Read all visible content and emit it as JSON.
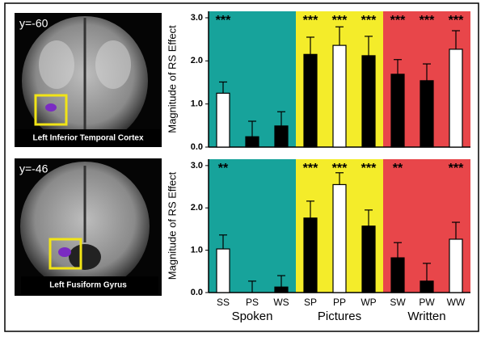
{
  "panels": [
    {
      "coordinate": "y=-60",
      "label": "Left Inferior Temporal Cortex"
    },
    {
      "coordinate": "y=-46",
      "label": "Left Fusiform Gyrus"
    }
  ],
  "chart_data": [
    {
      "type": "bar",
      "y_label": "Magnitude of RS Effect",
      "categories": [
        null,
        null,
        null,
        null,
        null,
        null,
        null,
        null,
        null
      ],
      "background_colors": [
        "#17a39b",
        "#f4ec2a",
        "#e8464a"
      ],
      "series": [
        {
          "values": [
            1.25,
            0.24,
            0.49,
            2.15,
            2.36,
            2.12,
            1.69,
            1.54,
            2.27
          ],
          "errors": [
            0.26,
            0.36,
            0.33,
            0.4,
            0.43,
            0.45,
            0.34,
            0.39,
            0.43
          ],
          "colors": [
            "#ffffff",
            "#000000",
            "#000000",
            "#000000",
            "#ffffff",
            "#000000",
            "#000000",
            "#000000",
            "#ffffff"
          ]
        }
      ],
      "annotations": [
        "***",
        null,
        null,
        "***",
        "***",
        "***",
        "***",
        "***",
        "***"
      ],
      "ylim": [
        0,
        3.15
      ],
      "yticks": [
        {
          "value": 0,
          "label": "0.0"
        },
        {
          "value": 1,
          "label": "1.0"
        },
        {
          "value": 2,
          "label": "2.0"
        },
        {
          "value": 3,
          "label": "3.0"
        }
      ]
    },
    {
      "type": "bar",
      "y_label": "Magnitude of RS Effect",
      "categories": [
        "SS",
        "PS",
        "WS",
        "SP",
        "PP",
        "WP",
        "SW",
        "PW",
        "WW"
      ],
      "groups": [
        "Spoken",
        "Pictures",
        "Written"
      ],
      "background_colors": [
        "#17a39b",
        "#f4ec2a",
        "#e8464a"
      ],
      "series": [
        {
          "values": [
            1.03,
            0,
            0.13,
            1.76,
            2.55,
            1.57,
            0.82,
            0.27,
            1.26
          ],
          "errors": [
            0.33,
            0.27,
            0.27,
            0.4,
            0.28,
            0.38,
            0.36,
            0.42,
            0.4
          ],
          "colors": [
            "#ffffff",
            "#000000",
            "#000000",
            "#000000",
            "#ffffff",
            "#000000",
            "#000000",
            "#000000",
            "#ffffff"
          ]
        }
      ],
      "annotations": [
        "**",
        null,
        null,
        "***",
        "***",
        "***",
        "**",
        null,
        "***"
      ],
      "ylim": [
        0,
        3.15
      ],
      "yticks": [
        {
          "value": 0,
          "label": "0.0"
        },
        {
          "value": 1,
          "label": "1.0"
        },
        {
          "value": 2,
          "label": "2.0"
        },
        {
          "value": 3,
          "label": "3.0"
        }
      ]
    }
  ]
}
